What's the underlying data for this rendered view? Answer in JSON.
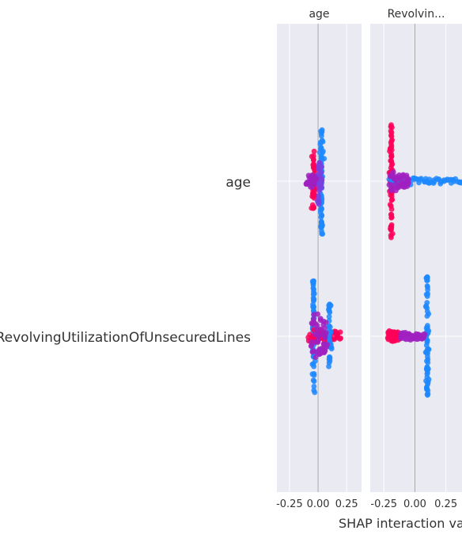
{
  "chart_data": {
    "type": "scatter",
    "subtype": "shap-interaction-summary",
    "xlabel": "SHAP interaction va",
    "row_labels": [
      "age",
      "RevolvingUtilizationOfUnsecuredLines"
    ],
    "panels": [
      {
        "title": "age",
        "xlim": [
          -0.36,
          0.38
        ],
        "ticks": [
          -0.25,
          0.0,
          0.25
        ],
        "tick_labels": [
          "-0.25",
          "0.00",
          "0.25"
        ],
        "cells": [
          {
            "row": "age",
            "clusters": [
              {
                "x_from": 0.03,
                "x_to": 0.03,
                "spread": 0.9,
                "color": "#1e88ff",
                "n": 70
              },
              {
                "x_from": -0.05,
                "x_to": -0.03,
                "spread": 0.52,
                "color": "#ff0058",
                "n": 40
              },
              {
                "x_from": -0.1,
                "x_to": 0.02,
                "spread": 0.12,
                "color": "#a020c0",
                "n": 40
              },
              {
                "x_from": 0.0,
                "x_to": 0.03,
                "spread": 0.55,
                "color": "#7a3ee0",
                "n": 30
              }
            ]
          },
          {
            "row": "RevolvingUtilizationOfUnsecuredLines",
            "clusters": [
              {
                "x_from": -0.04,
                "x_to": -0.04,
                "spread": 0.95,
                "color": "#1e88ff",
                "n": 60
              },
              {
                "x_from": -0.08,
                "x_to": 0.2,
                "spread": 0.12,
                "color": "#ff0058",
                "n": 50
              },
              {
                "x_from": 0.1,
                "x_to": 0.1,
                "spread": 0.55,
                "color": "#1e88ff",
                "n": 40
              },
              {
                "x_from": -0.06,
                "x_to": 0.08,
                "spread": 0.4,
                "color": "#a020c0",
                "n": 50
              }
            ]
          }
        ]
      },
      {
        "title": "Revolvin...",
        "xlim": [
          -0.36,
          0.38
        ],
        "ticks": [
          -0.25,
          0.0,
          0.25
        ],
        "tick_labels": [
          "-0.25",
          "0.00",
          "0.25"
        ],
        "cells": [
          {
            "row": "age",
            "clusters": [
              {
                "x_from": -0.19,
                "x_to": -0.19,
                "spread": 0.95,
                "color": "#ff0058",
                "n": 70
              },
              {
                "x_from": -0.2,
                "x_to": 0.38,
                "spread": 0.06,
                "color": "#1e88ff",
                "n": 60
              },
              {
                "x_from": -0.2,
                "x_to": -0.05,
                "spread": 0.18,
                "color": "#a020c0",
                "n": 50
              }
            ]
          },
          {
            "row": "RevolvingUtilizationOfUnsecuredLines",
            "clusters": [
              {
                "x_from": 0.1,
                "x_to": 0.1,
                "spread": 1.0,
                "color": "#1e88ff",
                "n": 70
              },
              {
                "x_from": -0.22,
                "x_to": -0.12,
                "spread": 0.1,
                "color": "#ff0058",
                "n": 40
              },
              {
                "x_from": -0.12,
                "x_to": 0.08,
                "spread": 0.07,
                "color": "#a020c0",
                "n": 40
              }
            ]
          }
        ]
      }
    ]
  }
}
